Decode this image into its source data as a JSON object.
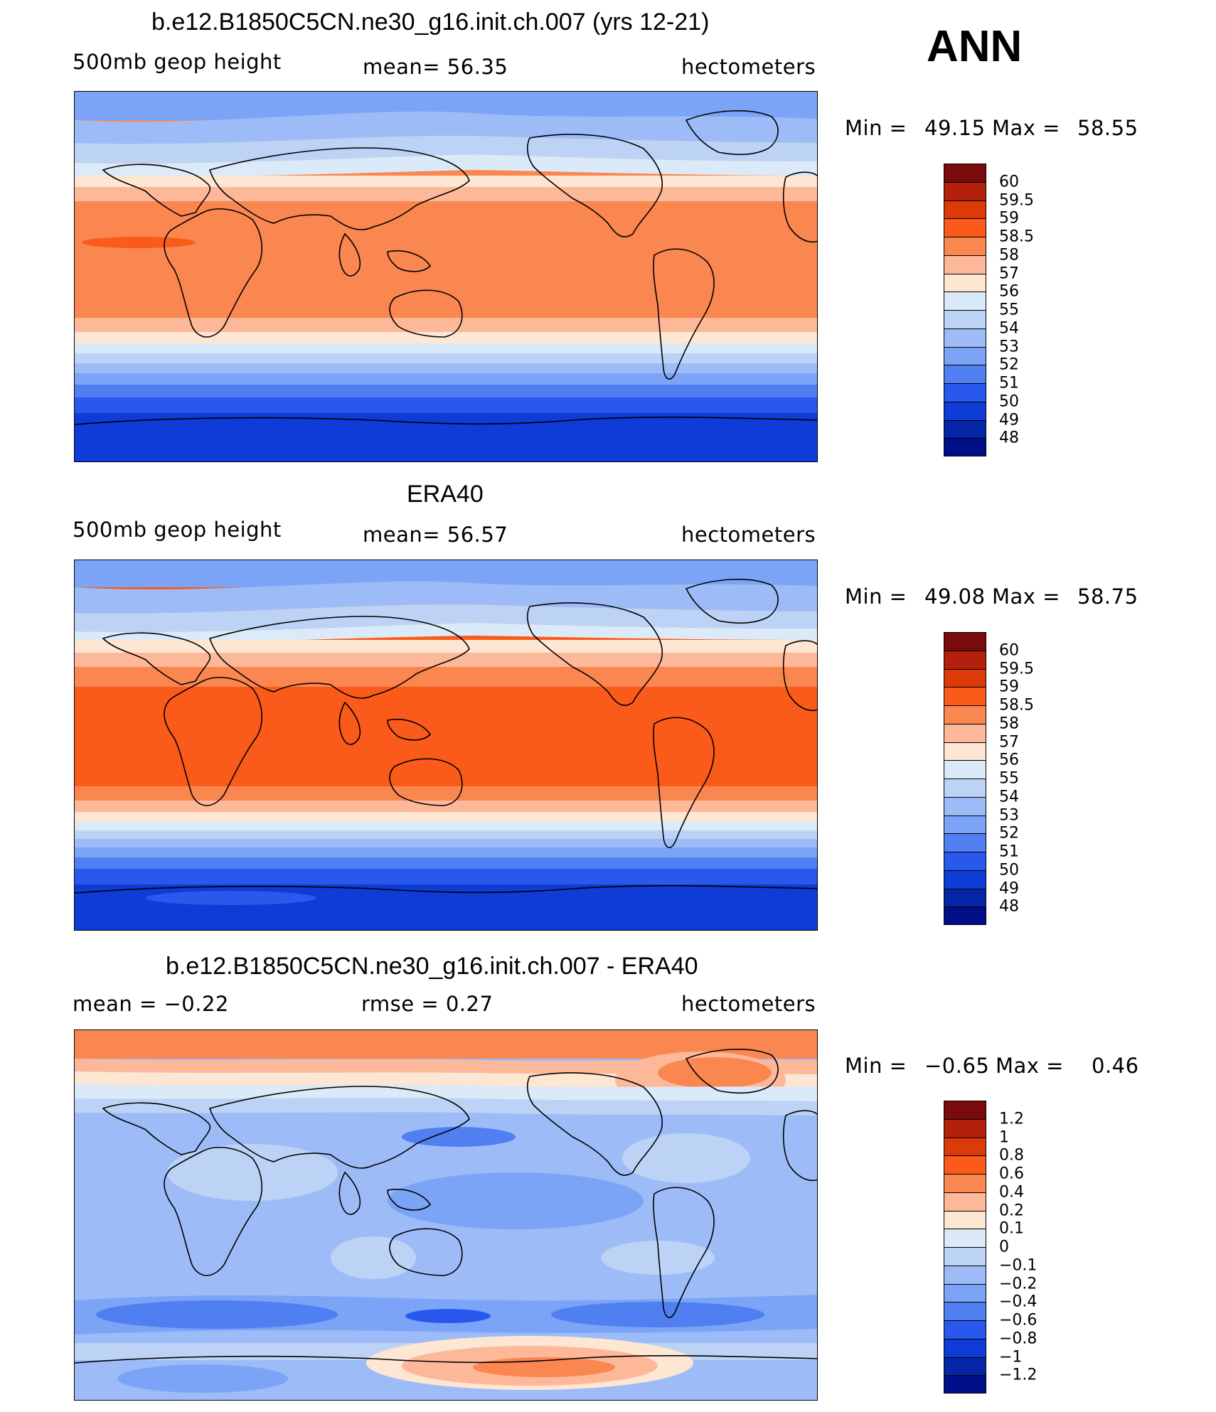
{
  "season": "ANN",
  "units": "hectometers",
  "panels": [
    {
      "title": "b.e12.B1850C5CN.ne30_g16.init.ch.007 (yrs 12-21)",
      "left_label": "500mb  geop  height",
      "center_label": "mean=   56.35",
      "right_label": "hectometers",
      "stats": {
        "min_label": "Min  =",
        "min_value": "49.15",
        "max_label": "Max  =",
        "max_value": "58.55"
      },
      "colorbar": {
        "colors": [
          "#7a0b0b",
          "#b3210c",
          "#dd3a0a",
          "#fa5a1a",
          "#fa8650",
          "#fdb89a",
          "#fde6d2",
          "#dbeaf9",
          "#bcd3f6",
          "#9dbcf7",
          "#7ba4f7",
          "#507ff2",
          "#2859ec",
          "#0d3cd6",
          "#0626a8",
          "#000f87"
        ],
        "labels": [
          "60",
          "59.5",
          "59",
          "58.5",
          "58",
          "57",
          "56",
          "55",
          "54",
          "53",
          "52",
          "51",
          "50",
          "49",
          "48"
        ]
      }
    },
    {
      "title": "ERA40",
      "left_label": "500mb  geop  height",
      "center_label": "mean=   56.57",
      "right_label": "hectometers",
      "stats": {
        "min_label": "Min  =",
        "min_value": "49.08",
        "max_label": "Max  =",
        "max_value": "58.75"
      },
      "colorbar": {
        "colors": [
          "#7a0b0b",
          "#b3210c",
          "#dd3a0a",
          "#fa5a1a",
          "#fa8650",
          "#fdb89a",
          "#fde6d2",
          "#dbeaf9",
          "#bcd3f6",
          "#9dbcf7",
          "#7ba4f7",
          "#507ff2",
          "#2859ec",
          "#0d3cd6",
          "#0626a8",
          "#000f87"
        ],
        "labels": [
          "60",
          "59.5",
          "59",
          "58.5",
          "58",
          "57",
          "56",
          "55",
          "54",
          "53",
          "52",
          "51",
          "50",
          "49",
          "48"
        ]
      }
    },
    {
      "title": "b.e12.B1850C5CN.ne30_g16.init.ch.007 - ERA40",
      "left_label": "mean  =    −0.22",
      "center_label": "rmse  =     0.27",
      "right_label": "hectometers",
      "stats": {
        "min_label": "Min  =",
        "min_value": "−0.65",
        "max_label": "Max  =",
        "max_value": "0.46"
      },
      "colorbar": {
        "colors": [
          "#7a0b0b",
          "#b3210c",
          "#dd3a0a",
          "#fa5a1a",
          "#fa8650",
          "#fdb89a",
          "#fde6d2",
          "#dbeaf9",
          "#bcd3f6",
          "#9dbcf7",
          "#7ba4f7",
          "#507ff2",
          "#2859ec",
          "#0d3cd6",
          "#0626a8",
          "#000f87"
        ],
        "labels": [
          "1.2",
          "1",
          "0.8",
          "0.6",
          "0.4",
          "0.2",
          "0.1",
          "0",
          "−0.1",
          "−0.2",
          "−0.4",
          "−0.6",
          "−0.8",
          "−1",
          "−1.2"
        ]
      }
    }
  ]
}
